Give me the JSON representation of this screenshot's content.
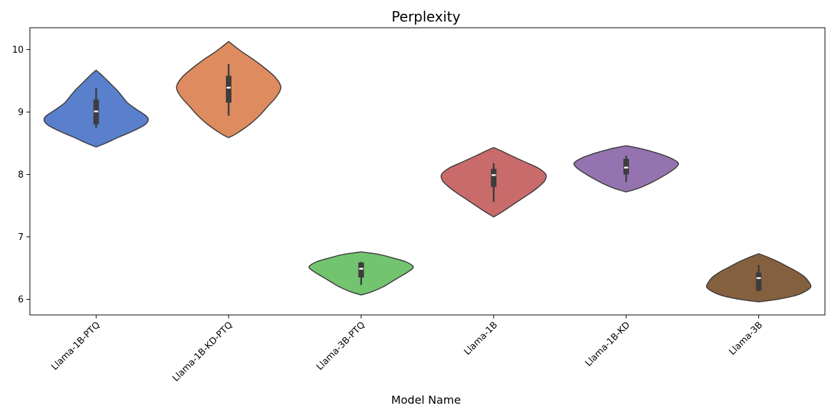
{
  "chart_data": {
    "type": "violin",
    "title": "Perplexity",
    "xlabel": "Model Name",
    "ylabel": "",
    "ylim": [
      5.75,
      10.35
    ],
    "yticks": [
      6,
      7,
      8,
      9,
      10
    ],
    "ytick_labels": [
      "6",
      "7",
      "8",
      "9",
      "10"
    ],
    "categories": [
      "Llama-1B-PTQ",
      "Llama-1B-KD-PTQ",
      "Llama-3B-PTQ",
      "Llama-1B",
      "Llama-1B-KD",
      "Llama-3B"
    ],
    "xtick_rotation_deg": 45,
    "grid": false,
    "legend": "none",
    "colors": [
      "#5a7fcc",
      "#de8b5f",
      "#73c46f",
      "#c96b6b",
      "#9473b0",
      "#85603f"
    ],
    "edge_color": "#3d3d3d",
    "violins": [
      {
        "category": "Llama-1B-PTQ",
        "min": 8.44,
        "max": 9.67,
        "q1": 8.8,
        "median": 9.01,
        "q3": 9.2,
        "whisker_low": 8.75,
        "whisker_high": 9.38,
        "density_profile": [
          [
            8.44,
            0.0
          ],
          [
            8.5,
            0.18
          ],
          [
            8.6,
            0.44
          ],
          [
            8.7,
            0.72
          ],
          [
            8.8,
            0.94
          ],
          [
            8.88,
            1.0
          ],
          [
            8.95,
            0.94
          ],
          [
            9.05,
            0.76
          ],
          [
            9.15,
            0.6
          ],
          [
            9.25,
            0.5
          ],
          [
            9.35,
            0.4
          ],
          [
            9.45,
            0.28
          ],
          [
            9.55,
            0.16
          ],
          [
            9.62,
            0.07
          ],
          [
            9.67,
            0.0
          ]
        ]
      },
      {
        "category": "Llama-1B-KD-PTQ",
        "min": 8.59,
        "max": 10.13,
        "q1": 9.15,
        "median": 9.39,
        "q3": 9.58,
        "whisker_low": 8.94,
        "whisker_high": 9.77,
        "density_profile": [
          [
            8.59,
            0.0
          ],
          [
            8.65,
            0.14
          ],
          [
            8.8,
            0.4
          ],
          [
            8.95,
            0.6
          ],
          [
            9.1,
            0.76
          ],
          [
            9.25,
            0.92
          ],
          [
            9.4,
            1.0
          ],
          [
            9.55,
            0.9
          ],
          [
            9.7,
            0.7
          ],
          [
            9.85,
            0.46
          ],
          [
            9.95,
            0.28
          ],
          [
            10.05,
            0.12
          ],
          [
            10.13,
            0.0
          ]
        ]
      },
      {
        "category": "Llama-3B-PTQ",
        "min": 6.07,
        "max": 6.76,
        "q1": 6.35,
        "median": 6.49,
        "q3": 6.59,
        "whisker_low": 6.23,
        "whisker_high": 6.6,
        "density_profile": [
          [
            6.07,
            0.0
          ],
          [
            6.12,
            0.2
          ],
          [
            6.2,
            0.42
          ],
          [
            6.28,
            0.58
          ],
          [
            6.36,
            0.74
          ],
          [
            6.44,
            0.9
          ],
          [
            6.52,
            1.0
          ],
          [
            6.6,
            0.86
          ],
          [
            6.66,
            0.62
          ],
          [
            6.72,
            0.34
          ],
          [
            6.76,
            0.0
          ]
        ]
      },
      {
        "category": "Llama-1B",
        "min": 7.32,
        "max": 8.43,
        "q1": 7.8,
        "median": 7.99,
        "q3": 8.09,
        "whisker_low": 7.56,
        "whisker_high": 8.18,
        "density_profile": [
          [
            7.32,
            0.0
          ],
          [
            7.4,
            0.16
          ],
          [
            7.5,
            0.34
          ],
          [
            7.6,
            0.52
          ],
          [
            7.7,
            0.7
          ],
          [
            7.8,
            0.86
          ],
          [
            7.9,
            0.98
          ],
          [
            8.0,
            1.0
          ],
          [
            8.1,
            0.86
          ],
          [
            8.2,
            0.6
          ],
          [
            8.3,
            0.34
          ],
          [
            8.38,
            0.14
          ],
          [
            8.43,
            0.0
          ]
        ]
      },
      {
        "category": "Llama-1B-KD",
        "min": 7.72,
        "max": 8.46,
        "q1": 8.0,
        "median": 8.11,
        "q3": 8.25,
        "whisker_low": 7.88,
        "whisker_high": 8.3,
        "density_profile": [
          [
            7.72,
            0.0
          ],
          [
            7.78,
            0.24
          ],
          [
            7.86,
            0.46
          ],
          [
            7.94,
            0.64
          ],
          [
            8.02,
            0.8
          ],
          [
            8.1,
            0.94
          ],
          [
            8.18,
            1.0
          ],
          [
            8.26,
            0.86
          ],
          [
            8.34,
            0.6
          ],
          [
            8.41,
            0.3
          ],
          [
            8.46,
            0.0
          ]
        ]
      },
      {
        "category": "Llama-3B",
        "min": 5.96,
        "max": 6.73,
        "q1": 6.14,
        "median": 6.34,
        "q3": 6.43,
        "whisker_low": 6.13,
        "whisker_high": 6.55,
        "density_profile": [
          [
            5.96,
            0.0
          ],
          [
            6.0,
            0.36
          ],
          [
            6.06,
            0.7
          ],
          [
            6.13,
            0.9
          ],
          [
            6.2,
            1.0
          ],
          [
            6.28,
            0.96
          ],
          [
            6.36,
            0.88
          ],
          [
            6.44,
            0.74
          ],
          [
            6.52,
            0.56
          ],
          [
            6.6,
            0.38
          ],
          [
            6.68,
            0.16
          ],
          [
            6.73,
            0.0
          ]
        ]
      }
    ]
  }
}
